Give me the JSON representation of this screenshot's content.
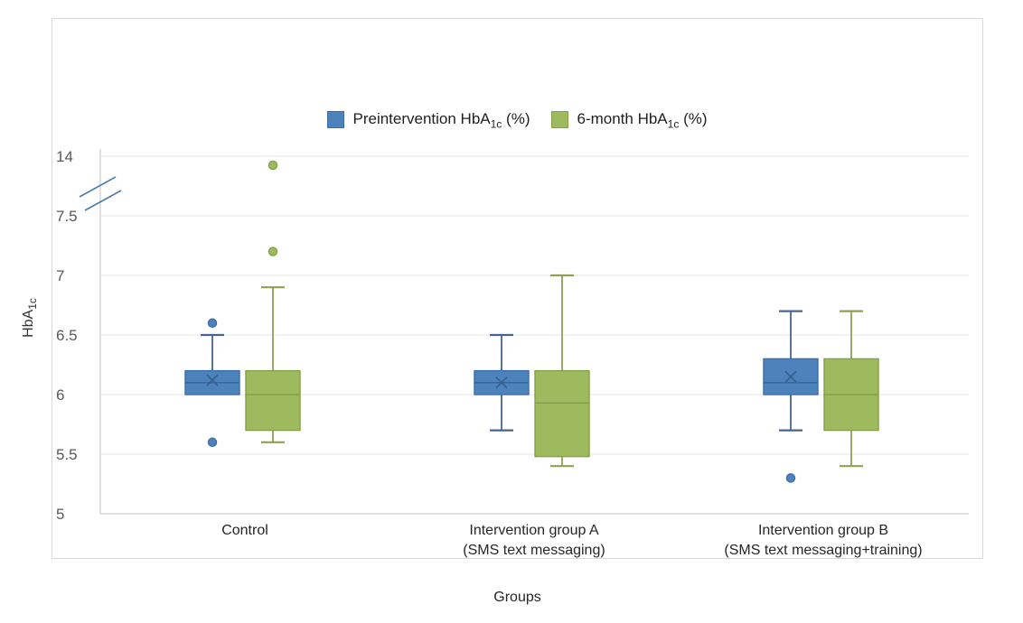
{
  "chart_data": {
    "type": "boxplot",
    "title": "",
    "xlabel": "Groups",
    "ylabel": "HbA1c",
    "y_axis_title": {
      "prefix": "HbA",
      "sub": "1c"
    },
    "y_axis": {
      "ticks": [
        {
          "label": "14",
          "value": 14
        },
        {
          "label": "7.5",
          "value": 7.5
        },
        {
          "label": "7",
          "value": 7
        },
        {
          "label": "6.5",
          "value": 6.5
        },
        {
          "label": "6",
          "value": 6
        },
        {
          "label": "5.5",
          "value": 5.5
        },
        {
          "label": "5",
          "value": 5
        }
      ],
      "ylim": [
        5,
        14
      ],
      "axis_break_between": [
        7.5,
        14
      ],
      "grid": "on"
    },
    "legend": [
      {
        "prefix": "Preintervention HbA",
        "sub": "1c",
        "suffix": " (%)",
        "color": "#4e82bd",
        "border": "#3c6da7"
      },
      {
        "prefix": "6-month HbA",
        "sub": "1c",
        "suffix": " (%)",
        "color": "#9dbb5e",
        "border": "#84a04a"
      }
    ],
    "series_names": [
      "Preintervention HbA1c (%)",
      "6-month HbA1c (%)"
    ],
    "groups": [
      {
        "label_line1": "Control",
        "label_line2": "",
        "series": [
          {
            "series": "pre",
            "name": "Preintervention HbA1c (%)",
            "whisker_low": null,
            "q1": 6.0,
            "median": 6.1,
            "q3": 6.2,
            "whisker_high": 6.5,
            "mean": 6.12,
            "outliers": [
              6.6,
              5.6
            ]
          },
          {
            "series": "six",
            "name": "6-month HbA1c (%)",
            "whisker_low": 5.6,
            "q1": 5.7,
            "median": 6.0,
            "q3": 6.2,
            "whisker_high": 6.9,
            "mean": null,
            "outliers": [
              13.9,
              7.2
            ]
          }
        ]
      },
      {
        "label_line1": "Intervention group A",
        "label_line2": "(SMS text messaging)",
        "series": [
          {
            "series": "pre",
            "name": "Preintervention HbA1c (%)",
            "whisker_low": 5.7,
            "q1": 6.0,
            "median": 6.1,
            "q3": 6.2,
            "whisker_high": 6.5,
            "mean": 6.1,
            "outliers": []
          },
          {
            "series": "six",
            "name": "6-month HbA1c (%)",
            "whisker_low": 5.4,
            "q1": 5.48,
            "median": 5.93,
            "q3": 6.2,
            "whisker_high": 7.0,
            "mean": null,
            "outliers": []
          }
        ]
      },
      {
        "label_line1": "Intervention group B",
        "label_line2": "(SMS text messaging+training)",
        "series": [
          {
            "series": "pre",
            "name": "Preintervention HbA1c (%)",
            "whisker_low": 5.7,
            "q1": 6.0,
            "median": 6.1,
            "q3": 6.3,
            "whisker_high": 6.7,
            "mean": 6.15,
            "outliers": [
              5.3
            ]
          },
          {
            "series": "six",
            "name": "6-month HbA1c (%)",
            "whisker_low": 5.4,
            "q1": 5.7,
            "median": 6.0,
            "q3": 6.3,
            "whisker_high": 6.7,
            "mean": null,
            "outliers": []
          }
        ]
      }
    ],
    "colors": {
      "pre": {
        "fill": "#4e82bd",
        "stroke": "#3c6da7",
        "whisker": "#46658f",
        "median": "#38639a",
        "mean": "#35608f"
      },
      "six": {
        "fill": "#9dbb5e",
        "stroke": "#84a04a",
        "whisker": "#8fa055",
        "median": "#7d9a46"
      },
      "grid": "#e4e4e4",
      "axis": "#c2c2c2",
      "tick_text": "#595959",
      "label_text": "#262626",
      "break_mark": "#4a7ba6"
    }
  }
}
